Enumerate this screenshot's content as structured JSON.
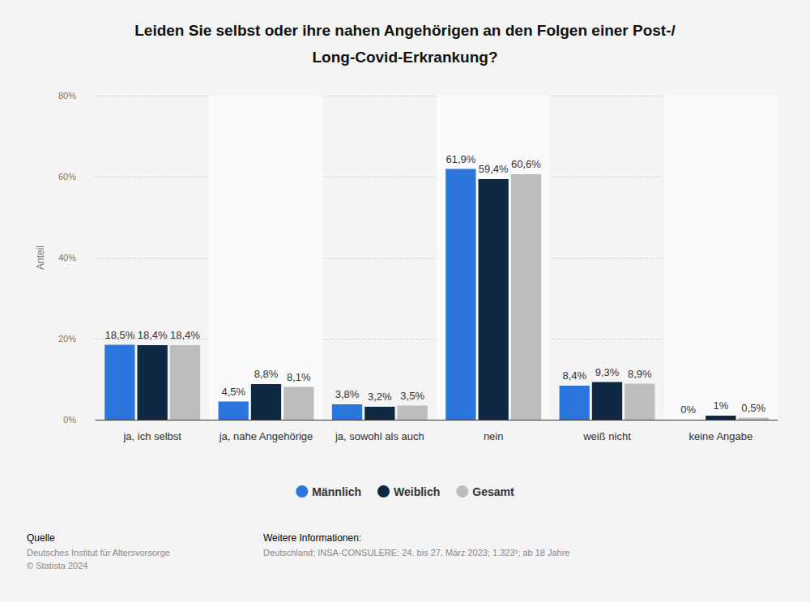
{
  "chart_data": {
    "type": "bar",
    "title": "Leiden Sie selbst oder ihre nahen Angehörigen an den Folgen einer Post-/Long-Covid-Erkrankung?",
    "y_label": "Anteil",
    "categories": [
      "ja, ich selbst",
      "ja, nahe Angehörige",
      "ja, sowohl als auch",
      "nein",
      "weiß nicht",
      "keine Angabe"
    ],
    "series": [
      {
        "name": "Männlich",
        "color": "#2a76dd",
        "values": [
          18.5,
          4.5,
          3.8,
          61.9,
          8.4,
          0
        ],
        "value_labels": [
          "18,5%",
          "4,5%",
          "3,8%",
          "61,9%",
          "8,4%",
          "0%"
        ]
      },
      {
        "name": "Weiblich",
        "color": "#0f2942",
        "values": [
          18.4,
          8.8,
          3.2,
          59.4,
          9.3,
          1
        ],
        "value_labels": [
          "18,4%",
          "8,8%",
          "3,2%",
          "59,4%",
          "9,3%",
          "1%"
        ]
      },
      {
        "name": "Gesamt",
        "color": "#bdbdbd",
        "values": [
          18.4,
          8.1,
          3.5,
          60.6,
          8.9,
          0.5
        ],
        "value_labels": [
          "18,4%",
          "8,1%",
          "3,5%",
          "60,6%",
          "8,9%",
          "0,5%"
        ]
      }
    ],
    "ylim": [
      0,
      80
    ],
    "yticks": [
      {
        "value": 0,
        "label": "0%"
      },
      {
        "value": 20,
        "label": "20%"
      },
      {
        "value": 40,
        "label": "40%"
      },
      {
        "value": 60,
        "label": "60%"
      },
      {
        "value": 80,
        "label": "80%"
      }
    ],
    "grid": true,
    "data_labels": true,
    "legend": "bottom",
    "footer": {
      "source_title": "Quelle",
      "source_lines": [
        "Deutsches Institut für Altersvorsorge",
        "© Statista 2024"
      ],
      "info_title": "Weitere Informationen:",
      "info_lines": [
        "Deutschland; INSA-CONSULERE; 24. bis 27. März 2023; 1.323¹; ab 18 Jahre"
      ]
    }
  }
}
